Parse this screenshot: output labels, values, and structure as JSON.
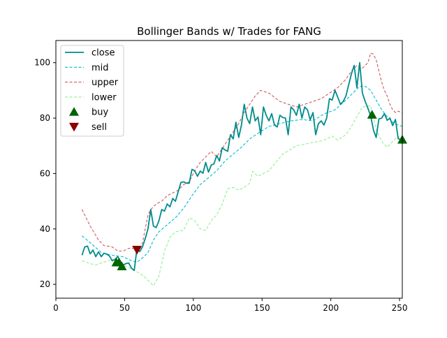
{
  "chart_data": {
    "type": "line",
    "title": "Bollinger Bands w/ Trades for FANG",
    "xlabel": "",
    "ylabel": "",
    "xlim": [
      0,
      252
    ],
    "ylim": [
      15,
      108
    ],
    "xticks": [
      0,
      50,
      100,
      150,
      200,
      250
    ],
    "yticks": [
      20,
      40,
      60,
      80,
      100
    ],
    "legend_position": "top-left",
    "colors": {
      "close": "#008b8b",
      "mid": "#00bcd4",
      "upper": "#cd5c5c",
      "lower": "#90ee90",
      "buy": "#006400",
      "sell": "#8b0000"
    },
    "legend": [
      "close",
      "mid",
      "upper",
      "lower",
      "buy",
      "sell"
    ],
    "series": [
      {
        "name": "close",
        "style": "solid",
        "x": [
          19,
          21,
          23,
          25,
          27,
          29,
          31,
          33,
          35,
          37,
          39,
          41,
          43,
          45,
          47,
          49,
          51,
          53,
          55,
          57,
          59,
          61,
          63,
          65,
          67,
          69,
          71,
          73,
          75,
          77,
          79,
          81,
          83,
          85,
          87,
          89,
          91,
          93,
          95,
          97,
          99,
          101,
          103,
          105,
          107,
          109,
          111,
          113,
          115,
          117,
          119,
          121,
          123,
          125,
          127,
          129,
          131,
          133,
          135,
          137,
          139,
          141,
          143,
          145,
          147,
          149,
          151,
          153,
          155,
          157,
          159,
          161,
          163,
          165,
          167,
          169,
          171,
          173,
          175,
          177,
          179,
          181,
          183,
          185,
          187,
          189,
          191,
          193,
          195,
          197,
          199,
          201,
          203,
          205,
          207,
          209,
          211,
          213,
          215,
          217,
          219,
          221,
          223,
          225,
          227,
          229,
          231,
          233,
          235,
          237,
          239,
          241,
          243,
          245,
          247,
          249,
          251
        ],
        "values": [
          30.5,
          33.5,
          33.8,
          31,
          32.4,
          30,
          31.7,
          30,
          31.2,
          30.9,
          30.2,
          28.5,
          29,
          30,
          28.2,
          27,
          27.5,
          27.7,
          25.8,
          25,
          33,
          31.8,
          33.5,
          36.5,
          40,
          47,
          41,
          40.5,
          43,
          47,
          46.4,
          49,
          48,
          51,
          50,
          53.5,
          56.8,
          57,
          56.5,
          56.5,
          61.5,
          61,
          59,
          60.9,
          60.1,
          64,
          60.5,
          63,
          63.5,
          66.5,
          64.5,
          69.3,
          68.5,
          68,
          74,
          72.5,
          78.5,
          73,
          77.5,
          85,
          80,
          78,
          84,
          79,
          80.4,
          74,
          84,
          81,
          79,
          81.6,
          77.5,
          76.8,
          81,
          80.2,
          80,
          74,
          84,
          83,
          81,
          85,
          80,
          84,
          83,
          79.4,
          82,
          74,
          78,
          79,
          77.5,
          80,
          87,
          86.5,
          90,
          87.6,
          85,
          86,
          88,
          92,
          96,
          99,
          91,
          100,
          89,
          86,
          83.5,
          80.8,
          75.7,
          73,
          79.7,
          80,
          81.6,
          79.2,
          80,
          77.3,
          79.5,
          72.6,
          72.2
        ]
      },
      {
        "name": "mid",
        "style": "dashed",
        "x": [
          19,
          25,
          33,
          41,
          49,
          55,
          59,
          63,
          67,
          71,
          75,
          81,
          87,
          93,
          99,
          105,
          111,
          117,
          123,
          129,
          135,
          141,
          147,
          155,
          163,
          171,
          179,
          187,
          195,
          203,
          211,
          217,
          221,
          225,
          229,
          233,
          237,
          241,
          245,
          249,
          252
        ],
        "values": [
          37.5,
          35,
          31.5,
          30.5,
          30,
          28.5,
          28,
          29.5,
          31.5,
          36,
          39,
          41.5,
          44,
          47.5,
          52,
          56,
          58.5,
          61,
          64.5,
          67,
          69.5,
          72.5,
          74.5,
          77,
          78,
          79,
          79.5,
          79,
          81.5,
          83,
          86.5,
          89.5,
          91.5,
          91.5,
          90,
          86.5,
          83,
          80.5,
          78.5,
          77.5,
          77
        ]
      },
      {
        "name": "upper",
        "style": "dashed",
        "x": [
          19,
          25,
          31,
          35,
          41,
          45,
          49,
          53,
          57,
          61,
          63,
          65,
          67,
          69,
          73,
          77,
          81,
          85,
          89,
          93,
          97,
          101,
          105,
          109,
          113,
          117,
          121,
          125,
          129,
          133,
          137,
          141,
          145,
          149,
          155,
          163,
          169,
          175,
          181,
          187,
          193,
          199,
          205,
          211,
          215,
          219,
          223,
          227,
          229,
          231,
          233,
          235,
          237,
          239,
          241,
          243,
          245,
          247,
          249,
          252
        ],
        "values": [
          47,
          41,
          36,
          34,
          33.5,
          32,
          32,
          33,
          33,
          32.5,
          35,
          40,
          45,
          47,
          49,
          50,
          52,
          53,
          54,
          56,
          57,
          61,
          64,
          66,
          68,
          66,
          69,
          72,
          75,
          78,
          82,
          85,
          88,
          90,
          89,
          86,
          85,
          84,
          85,
          86,
          87,
          89,
          91,
          94,
          97,
          99,
          98,
          100,
          103.5,
          103,
          101,
          97,
          93,
          90,
          88,
          85,
          83,
          82,
          82.5,
          82
        ]
      },
      {
        "name": "lower",
        "style": "dashed",
        "x": [
          19,
          25,
          29,
          35,
          41,
          47,
          53,
          57,
          61,
          65,
          69,
          71,
          75,
          79,
          83,
          87,
          93,
          97,
          101,
          105,
          109,
          113,
          117,
          121,
          125,
          129,
          133,
          137,
          141,
          143,
          147,
          155,
          165,
          175,
          185,
          195,
          201,
          205,
          211,
          215,
          219,
          223,
          229,
          233,
          237,
          241,
          245,
          249,
          252
        ],
        "values": [
          28.5,
          27.5,
          27,
          28,
          29,
          27.5,
          26,
          25,
          24,
          22.5,
          20.5,
          19.5,
          23,
          32,
          37,
          39,
          39.5,
          44,
          43,
          40,
          39.5,
          43,
          45,
          49,
          54.5,
          55,
          54,
          55,
          56.5,
          60.8,
          59,
          61,
          67,
          70,
          71,
          72,
          73.5,
          72,
          74,
          77,
          80.5,
          84,
          84.5,
          76,
          71.5,
          69.5,
          71.5,
          73.5,
          72
        ]
      }
    ],
    "buy": {
      "x": [
        44,
        46,
        48,
        230,
        252
      ],
      "values": [
        27.9,
        27.9,
        26.5,
        81.2,
        72.2
      ]
    },
    "sell": {
      "x": [
        59
      ],
      "values": [
        32.5
      ]
    }
  }
}
